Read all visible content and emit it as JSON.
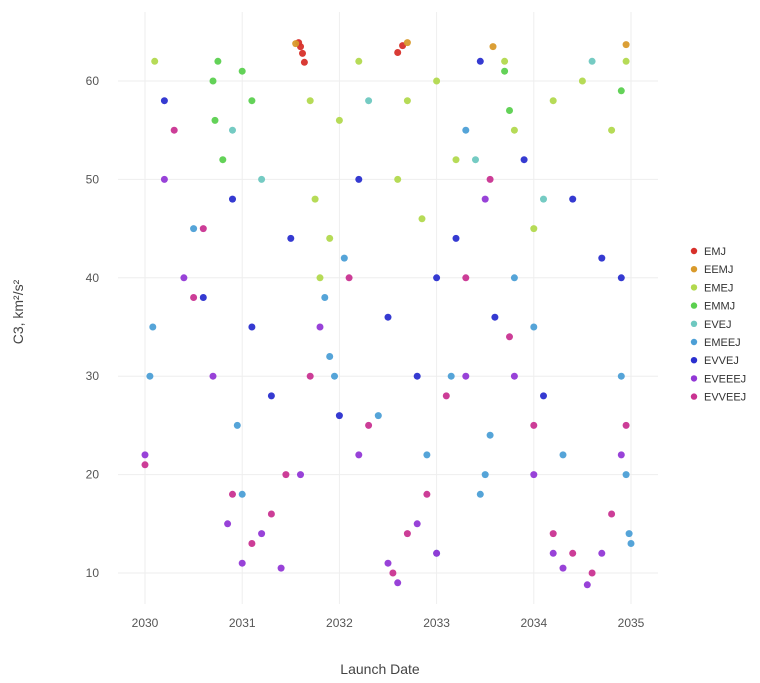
{
  "chart_data": {
    "type": "scatter",
    "title": "",
    "xlabel": "Launch Date",
    "ylabel": "C3, km²/s²",
    "xlim": [
      2030,
      2035
    ],
    "ylim": [
      8.5,
      64
    ],
    "x_ticks": [
      2030,
      2031,
      2032,
      2033,
      2034,
      2035
    ],
    "x_tick_labels": [
      "2030",
      "2031",
      "2032",
      "2033",
      "2034",
      "2035"
    ],
    "y_ticks": [
      10,
      20,
      30,
      40,
      50,
      60
    ],
    "y_tick_labels": [
      "10",
      "20",
      "30",
      "40",
      "50",
      "60"
    ],
    "grid": true,
    "legend_position": "right",
    "series": [
      {
        "name": "EMJ",
        "color": "#d7302a",
        "points": [
          [
            2031.6,
            63.5
          ],
          [
            2031.62,
            62.8
          ],
          [
            2031.58,
            63.9
          ],
          [
            2032.65,
            63.6
          ],
          [
            2032.6,
            62.9
          ],
          [
            2031.64,
            61.9
          ]
        ]
      },
      {
        "name": "EEMJ",
        "color": "#d99a2b",
        "points": [
          [
            2031.55,
            63.8
          ],
          [
            2032.7,
            63.9
          ],
          [
            2034.95,
            63.7
          ],
          [
            2033.58,
            63.5
          ]
        ]
      },
      {
        "name": "EMEJ",
        "color": "#b2d94e",
        "points": [
          [
            2030.1,
            62
          ],
          [
            2031.7,
            58
          ],
          [
            2031.75,
            48
          ],
          [
            2031.8,
            40
          ],
          [
            2031.9,
            44
          ],
          [
            2032.0,
            56
          ],
          [
            2032.2,
            62
          ],
          [
            2032.6,
            50
          ],
          [
            2032.7,
            58
          ],
          [
            2032.85,
            46
          ],
          [
            2033.0,
            60
          ],
          [
            2033.2,
            52
          ],
          [
            2033.7,
            62
          ],
          [
            2033.8,
            55
          ],
          [
            2034.0,
            45
          ],
          [
            2034.2,
            58
          ],
          [
            2034.5,
            60
          ],
          [
            2034.8,
            55
          ],
          [
            2034.95,
            62
          ]
        ]
      },
      {
        "name": "EMMJ",
        "color": "#5bd04f",
        "points": [
          [
            2030.7,
            60
          ],
          [
            2030.72,
            56
          ],
          [
            2030.75,
            62
          ],
          [
            2030.8,
            52
          ],
          [
            2031.0,
            61
          ],
          [
            2031.1,
            58
          ],
          [
            2033.7,
            61
          ],
          [
            2033.75,
            57
          ],
          [
            2034.9,
            59
          ]
        ]
      },
      {
        "name": "EVEJ",
        "color": "#6ec8c0",
        "points": [
          [
            2030.9,
            55
          ],
          [
            2031.2,
            50
          ],
          [
            2032.3,
            58
          ],
          [
            2033.4,
            52
          ],
          [
            2034.1,
            48
          ],
          [
            2034.6,
            62
          ]
        ]
      },
      {
        "name": "EMEEJ",
        "color": "#4c9fd6",
        "points": [
          [
            2030.05,
            30
          ],
          [
            2030.08,
            35
          ],
          [
            2030.5,
            45
          ],
          [
            2030.95,
            25
          ],
          [
            2031.0,
            18
          ],
          [
            2031.85,
            38
          ],
          [
            2031.9,
            32
          ],
          [
            2031.95,
            30
          ],
          [
            2032.05,
            42
          ],
          [
            2032.4,
            26
          ],
          [
            2032.9,
            22
          ],
          [
            2033.0,
            12
          ],
          [
            2033.15,
            30
          ],
          [
            2033.3,
            55
          ],
          [
            2033.45,
            18
          ],
          [
            2033.5,
            20
          ],
          [
            2033.55,
            24
          ],
          [
            2033.8,
            40
          ],
          [
            2034.0,
            35
          ],
          [
            2034.3,
            22
          ],
          [
            2034.9,
            30
          ],
          [
            2034.95,
            20
          ],
          [
            2034.98,
            14
          ],
          [
            2035.0,
            13
          ]
        ]
      },
      {
        "name": "EVVEJ",
        "color": "#2a2fcf",
        "points": [
          [
            2030.2,
            58
          ],
          [
            2030.6,
            38
          ],
          [
            2030.9,
            48
          ],
          [
            2031.1,
            35
          ],
          [
            2031.3,
            28
          ],
          [
            2031.5,
            44
          ],
          [
            2032.0,
            26
          ],
          [
            2032.2,
            50
          ],
          [
            2032.5,
            36
          ],
          [
            2032.8,
            30
          ],
          [
            2033.0,
            40
          ],
          [
            2033.2,
            44
          ],
          [
            2033.45,
            62
          ],
          [
            2033.6,
            36
          ],
          [
            2033.9,
            52
          ],
          [
            2034.1,
            28
          ],
          [
            2034.4,
            48
          ],
          [
            2034.7,
            42
          ],
          [
            2034.9,
            40
          ]
        ]
      },
      {
        "name": "EVEEEJ",
        "color": "#9238d6",
        "points": [
          [
            2030.0,
            22
          ],
          [
            2030.2,
            50
          ],
          [
            2030.4,
            40
          ],
          [
            2030.7,
            30
          ],
          [
            2030.85,
            15
          ],
          [
            2031.0,
            11
          ],
          [
            2031.2,
            14
          ],
          [
            2031.4,
            10.5
          ],
          [
            2031.6,
            20
          ],
          [
            2031.8,
            35
          ],
          [
            2032.2,
            22
          ],
          [
            2032.5,
            11
          ],
          [
            2032.6,
            9
          ],
          [
            2032.8,
            15
          ],
          [
            2033.0,
            12
          ],
          [
            2033.3,
            30
          ],
          [
            2033.5,
            48
          ],
          [
            2033.8,
            30
          ],
          [
            2034.0,
            20
          ],
          [
            2034.2,
            12
          ],
          [
            2034.3,
            10.5
          ],
          [
            2034.55,
            8.8
          ],
          [
            2034.7,
            12
          ],
          [
            2034.9,
            22
          ]
        ]
      },
      {
        "name": "EVVEEJ",
        "color": "#c93391",
        "points": [
          [
            2030.0,
            21
          ],
          [
            2030.3,
            55
          ],
          [
            2030.5,
            38
          ],
          [
            2030.6,
            45
          ],
          [
            2030.9,
            18
          ],
          [
            2031.1,
            13
          ],
          [
            2031.3,
            16
          ],
          [
            2031.45,
            20
          ],
          [
            2031.7,
            30
          ],
          [
            2032.1,
            40
          ],
          [
            2032.3,
            25
          ],
          [
            2032.55,
            10
          ],
          [
            2032.7,
            14
          ],
          [
            2032.9,
            18
          ],
          [
            2033.1,
            28
          ],
          [
            2033.3,
            40
          ],
          [
            2033.55,
            50
          ],
          [
            2033.75,
            34
          ],
          [
            2034.0,
            25
          ],
          [
            2034.2,
            14
          ],
          [
            2034.4,
            12
          ],
          [
            2034.6,
            10
          ],
          [
            2034.8,
            16
          ],
          [
            2034.95,
            25
          ]
        ]
      }
    ]
  }
}
